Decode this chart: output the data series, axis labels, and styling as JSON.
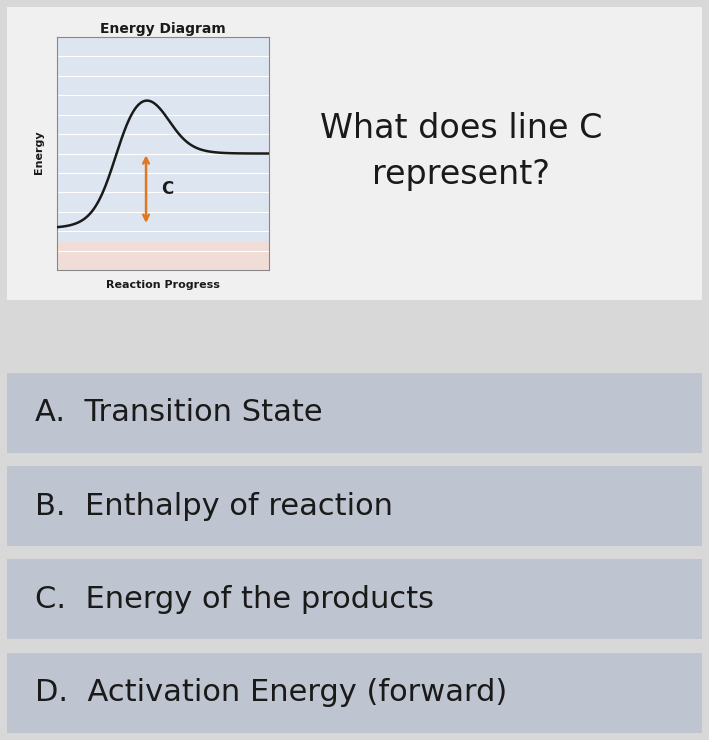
{
  "bg_color": "#d8d8d8",
  "top_card_bg": "#f0f0f0",
  "answer_bg": "#bfc5d0",
  "answer_text_color": "#1a1a1a",
  "diagram_title": "Energy Diagram",
  "diagram_xlabel": "Reaction Progress",
  "diagram_ylabel": "Energy",
  "question_text": "What does line C\nrepresent?",
  "arrow_color": "#e07820",
  "arrow_label": "C",
  "curve_color": "#1a1a1a",
  "axes_bg": "#dde5f0",
  "axes_bg_bottom": "#f0ddd8",
  "grid_color": "#ffffff",
  "answers": [
    "A.  Transition State",
    "B.  Enthalpy of reaction",
    "C.  Energy of the products",
    "D.  Activation Energy (forward)"
  ],
  "question_fontsize": 24,
  "answer_fontsize": 22,
  "diagram_title_fontsize": 10,
  "diagram_label_fontsize": 8,
  "arrow_label_fontsize": 12
}
